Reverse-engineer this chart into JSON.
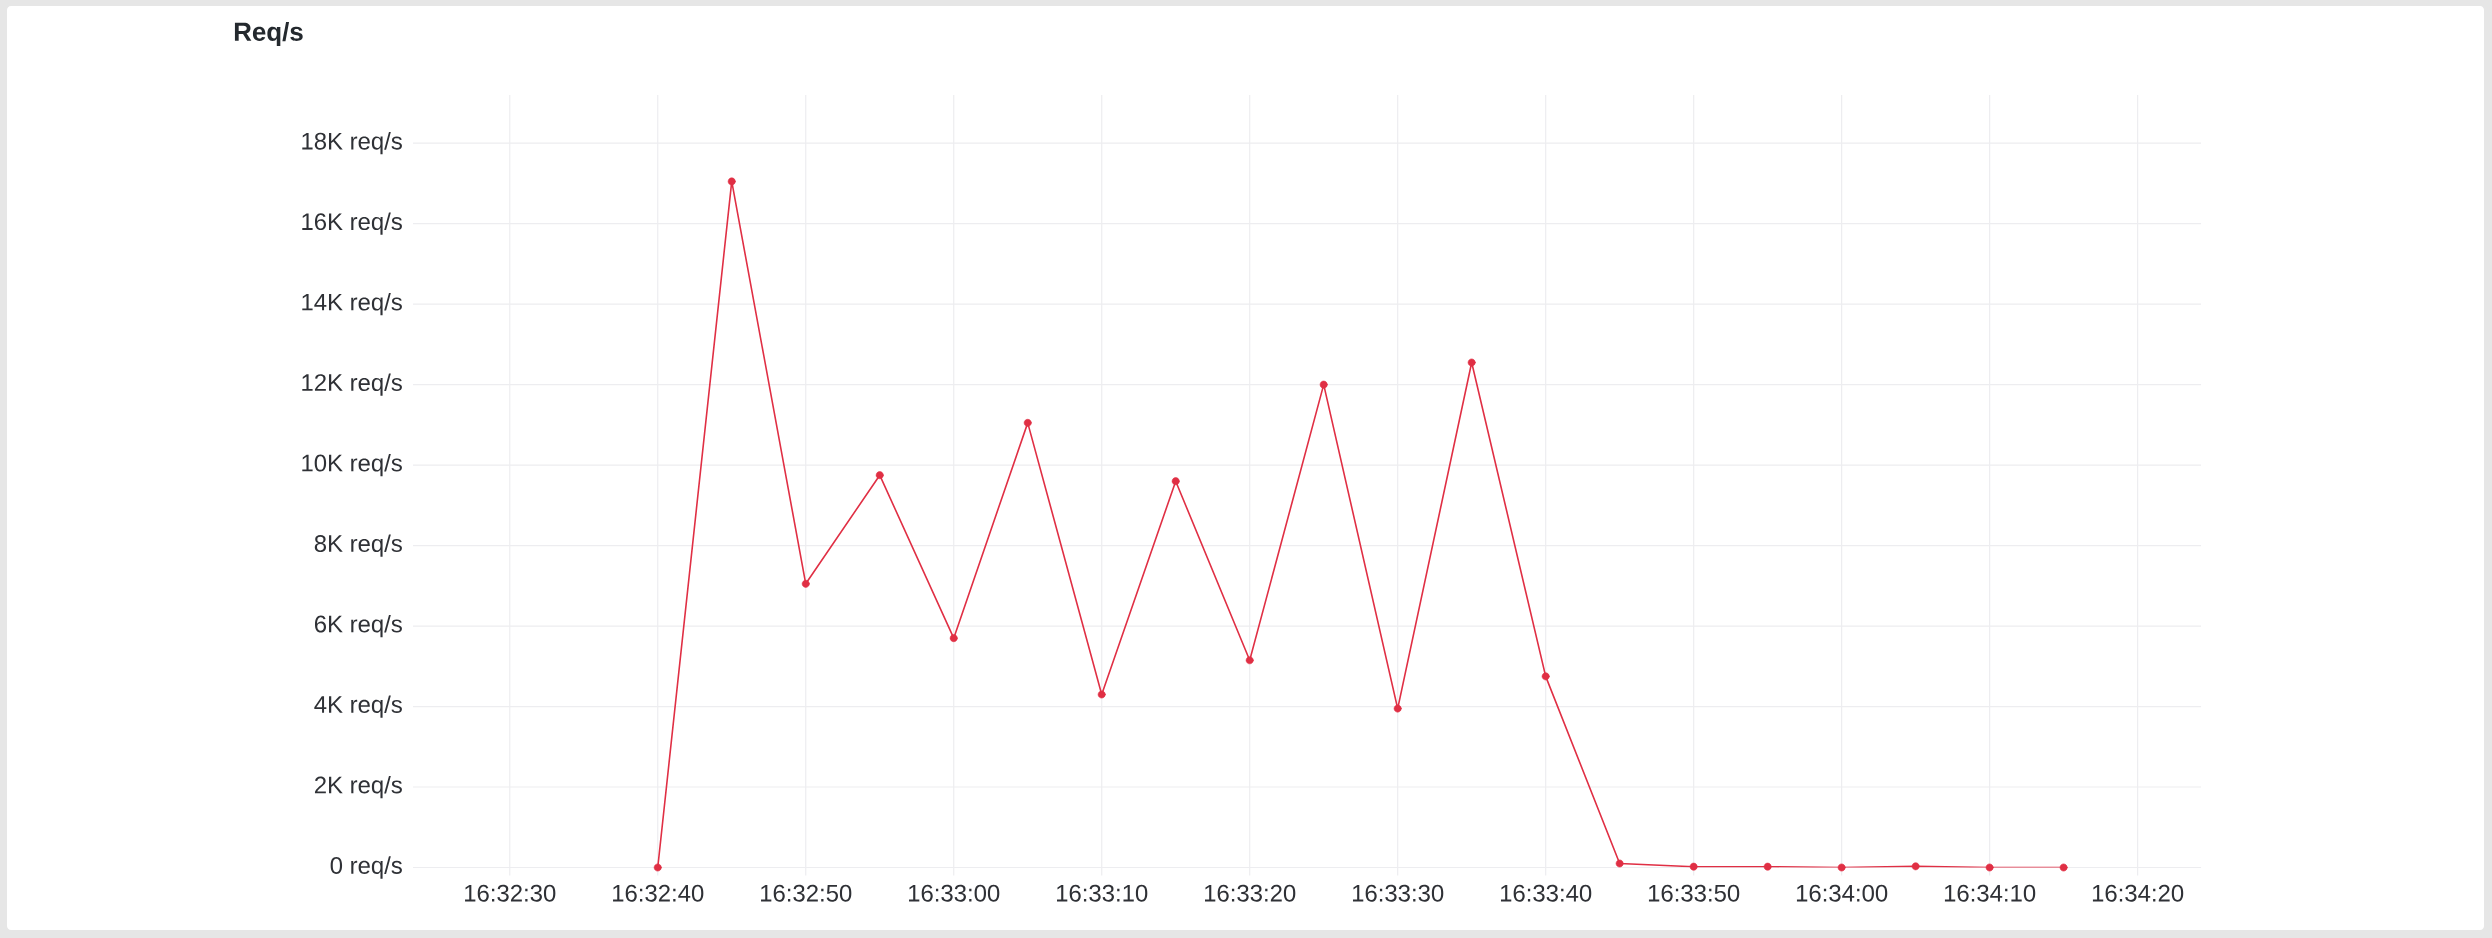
{
  "chart_data": {
    "type": "line",
    "title": "Req/s",
    "x": [
      16.544444,
      16.545833,
      16.547222,
      16.548611,
      16.55,
      16.551389,
      16.552778,
      16.554167,
      16.555556,
      16.556944,
      16.558333,
      16.559722,
      16.561111,
      16.5625,
      16.563889,
      16.565278,
      16.566667,
      16.568056,
      16.569444,
      16.570833
    ],
    "values": [
      0,
      17050,
      7050,
      9750,
      5700,
      11050,
      4300,
      9600,
      5150,
      12000,
      3950,
      12550,
      4750,
      100,
      20,
      20,
      0,
      30,
      0,
      0
    ],
    "color": "#e02f44",
    "xlim": [
      16.539861,
      16.573417
    ],
    "xticks": [
      {
        "value": 16.541667,
        "label": "16:32:30"
      },
      {
        "value": 16.544444,
        "label": "16:32:40"
      },
      {
        "value": 16.547222,
        "label": "16:32:50"
      },
      {
        "value": 16.55,
        "label": "16:33:00"
      },
      {
        "value": 16.552778,
        "label": "16:33:10"
      },
      {
        "value": 16.555556,
        "label": "16:33:20"
      },
      {
        "value": 16.558333,
        "label": "16:33:30"
      },
      {
        "value": 16.561111,
        "label": "16:33:40"
      },
      {
        "value": 16.563889,
        "label": "16:33:50"
      },
      {
        "value": 16.566667,
        "label": "16:34:00"
      },
      {
        "value": 16.569444,
        "label": "16:34:10"
      },
      {
        "value": 16.572222,
        "label": "16:34:20"
      }
    ],
    "ylim": [
      0,
      19000
    ],
    "yticks": [
      {
        "value": 0,
        "label": "0 req/s"
      },
      {
        "value": 2000,
        "label": "2K req/s"
      },
      {
        "value": 4000,
        "label": "4K req/s"
      },
      {
        "value": 6000,
        "label": "6K req/s"
      },
      {
        "value": 8000,
        "label": "8K req/s"
      },
      {
        "value": 10000,
        "label": "10K req/s"
      },
      {
        "value": 12000,
        "label": "12K req/s"
      },
      {
        "value": 14000,
        "label": "14K req/s"
      },
      {
        "value": 16000,
        "label": "16K req/s"
      },
      {
        "value": 18000,
        "label": "18K req/s"
      }
    ],
    "grid": true,
    "marker": "circle",
    "line_style": "solid"
  }
}
